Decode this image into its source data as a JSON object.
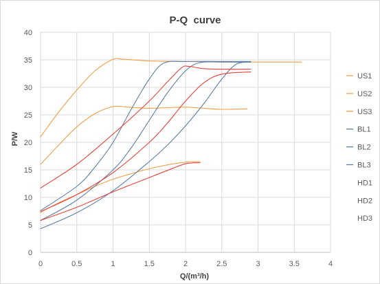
{
  "chart_data": {
    "type": "line",
    "title": "P-Q  curve",
    "xlabel": "Q/(m³/h)",
    "ylabel": "P/W",
    "xlim": [
      0,
      4
    ],
    "ylim": [
      0,
      40
    ],
    "xticks": [
      0,
      0.5,
      1,
      1.5,
      2,
      2.5,
      3,
      3.5,
      4
    ],
    "yticks": [
      0,
      5,
      10,
      15,
      20,
      25,
      30,
      35,
      40
    ],
    "grid": true,
    "legend": "right",
    "series": [
      {
        "name": "US1",
        "color": "#f0a046",
        "legend_swatch": true,
        "points": [
          [
            0,
            7.3
          ],
          [
            0.25,
            9
          ],
          [
            0.5,
            10.5
          ],
          [
            0.75,
            12
          ],
          [
            1,
            13.3
          ],
          [
            1.25,
            14.3
          ],
          [
            1.5,
            15.2
          ],
          [
            1.75,
            15.9
          ],
          [
            2,
            16.4
          ],
          [
            2.2,
            16.5
          ]
        ]
      },
      {
        "name": "US2",
        "color": "#f0a046",
        "legend_swatch": true,
        "points": [
          [
            0,
            16
          ],
          [
            0.25,
            19.5
          ],
          [
            0.5,
            22.8
          ],
          [
            0.75,
            25.2
          ],
          [
            1,
            26.5
          ],
          [
            1.2,
            26.4
          ],
          [
            1.5,
            26.2
          ],
          [
            1.75,
            26.3
          ],
          [
            2,
            26.4
          ],
          [
            2.25,
            26.2
          ],
          [
            2.5,
            26
          ],
          [
            2.85,
            26.1
          ]
        ]
      },
      {
        "name": "US3",
        "color": "#f0a046",
        "legend_swatch": true,
        "points": [
          [
            0,
            21
          ],
          [
            0.25,
            25.5
          ],
          [
            0.5,
            29.5
          ],
          [
            0.75,
            33
          ],
          [
            1,
            35.1
          ],
          [
            1.15,
            35.1
          ],
          [
            1.5,
            34.8
          ],
          [
            2,
            34.7
          ],
          [
            2.5,
            34.6
          ],
          [
            3,
            34.6
          ],
          [
            3.6,
            34.6
          ]
        ]
      },
      {
        "name": "BL1",
        "color": "#5b7fa6",
        "legend_swatch": true,
        "points": [
          [
            0,
            4.3
          ],
          [
            0.5,
            7.2
          ],
          [
            1,
            11.2
          ],
          [
            1.5,
            16.5
          ],
          [
            1.75,
            19.5
          ],
          [
            2,
            23
          ],
          [
            2.25,
            27
          ],
          [
            2.5,
            31.5
          ],
          [
            2.7,
            34.2
          ],
          [
            2.9,
            34.6
          ]
        ]
      },
      {
        "name": "BL2",
        "color": "#5b7fa6",
        "legend_swatch": true,
        "points": [
          [
            0,
            5.8
          ],
          [
            0.5,
            9.5
          ],
          [
            1,
            15
          ],
          [
            1.25,
            19
          ],
          [
            1.5,
            24
          ],
          [
            1.75,
            29
          ],
          [
            2,
            33
          ],
          [
            2.2,
            34.5
          ],
          [
            2.5,
            34.6
          ],
          [
            2.9,
            34.6
          ]
        ]
      },
      {
        "name": "BL3",
        "color": "#5b7fa6",
        "legend_swatch": true,
        "points": [
          [
            0,
            7.6
          ],
          [
            0.5,
            12
          ],
          [
            0.75,
            15.5
          ],
          [
            1,
            20
          ],
          [
            1.25,
            26
          ],
          [
            1.5,
            31.5
          ],
          [
            1.7,
            34.4
          ],
          [
            2,
            34.7
          ],
          [
            2.5,
            34.7
          ],
          [
            2.9,
            34.7
          ]
        ]
      },
      {
        "name": "HD1",
        "color": "#e8423a",
        "legend_swatch": false,
        "points": [
          [
            0,
            5.8
          ],
          [
            0.5,
            8.2
          ],
          [
            1,
            11
          ],
          [
            1.5,
            13.6
          ],
          [
            1.75,
            14.9
          ],
          [
            2,
            16.1
          ],
          [
            2.2,
            16.3
          ]
        ]
      },
      {
        "name": "HD2",
        "color": "#e8423a",
        "legend_swatch": false,
        "points": [
          [
            0,
            7.4
          ],
          [
            0.5,
            10.5
          ],
          [
            1,
            14.5
          ],
          [
            1.5,
            20
          ],
          [
            1.75,
            23.5
          ],
          [
            2,
            27.5
          ],
          [
            2.25,
            30.8
          ],
          [
            2.5,
            32.4
          ],
          [
            2.9,
            32.8
          ]
        ]
      },
      {
        "name": "HD3",
        "color": "#e8423a",
        "legend_swatch": false,
        "points": [
          [
            0,
            11.7
          ],
          [
            0.5,
            16
          ],
          [
            1,
            21.5
          ],
          [
            1.5,
            27.5
          ],
          [
            1.75,
            31
          ],
          [
            1.95,
            33.6
          ],
          [
            2.05,
            33.8
          ],
          [
            2.25,
            33.4
          ],
          [
            2.5,
            33.3
          ],
          [
            2.9,
            33.3
          ]
        ]
      }
    ]
  }
}
